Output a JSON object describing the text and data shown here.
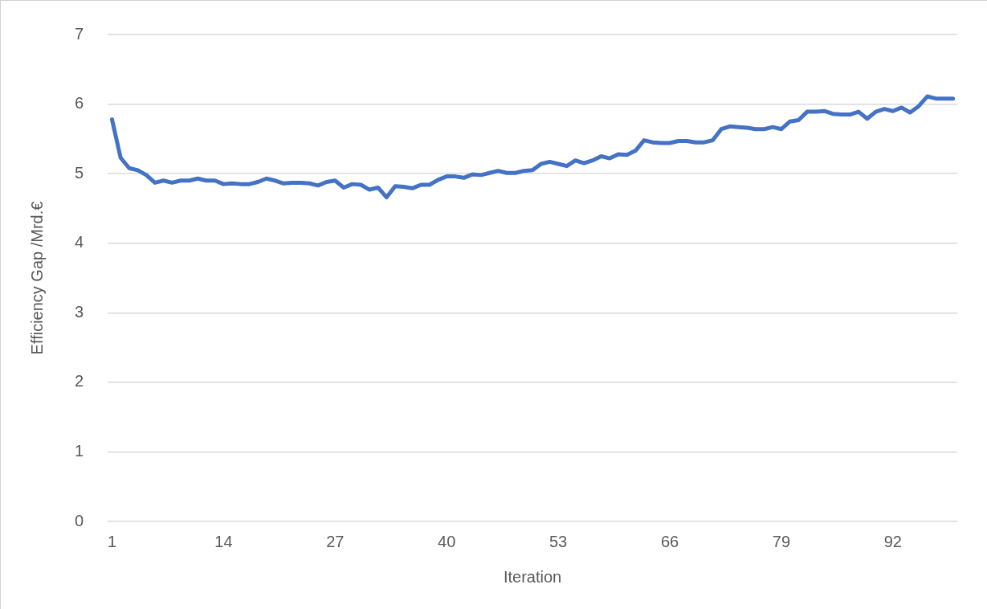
{
  "chart_data": {
    "type": "line",
    "xlabel": "Iteration",
    "ylabel": "Efficiency Gap /Mrd.€",
    "categories": [
      "1",
      null,
      null,
      null,
      null,
      null,
      null,
      null,
      null,
      null,
      null,
      null,
      null,
      "14",
      null,
      null,
      null,
      null,
      null,
      null,
      null,
      null,
      null,
      null,
      null,
      null,
      "27",
      null,
      null,
      null,
      null,
      null,
      null,
      null,
      null,
      null,
      null,
      null,
      null,
      "40",
      null,
      null,
      null,
      null,
      null,
      null,
      null,
      null,
      null,
      null,
      null,
      null,
      "53",
      null,
      null,
      null,
      null,
      null,
      null,
      null,
      null,
      null,
      null,
      null,
      null,
      "66",
      null,
      null,
      null,
      null,
      null,
      null,
      null,
      null,
      null,
      null,
      null,
      null,
      "79",
      null,
      null,
      null,
      null,
      null,
      null,
      null,
      null,
      null,
      null,
      null,
      null,
      "92",
      null,
      null,
      null,
      null,
      null,
      null,
      null
    ],
    "series": [
      {
        "color": "#4472c4",
        "values": [
          5.78,
          5.23,
          5.08,
          5.05,
          4.98,
          4.87,
          4.9,
          4.87,
          4.9,
          4.9,
          4.93,
          4.9,
          4.9,
          4.85,
          4.86,
          4.85,
          4.85,
          4.88,
          4.93,
          4.9,
          4.86,
          4.87,
          4.87,
          4.86,
          4.83,
          4.88,
          4.9,
          4.8,
          4.85,
          4.84,
          4.77,
          4.8,
          4.66,
          4.82,
          4.81,
          4.79,
          4.84,
          4.84,
          4.91,
          4.96,
          4.96,
          4.94,
          4.99,
          4.98,
          5.01,
          5.04,
          5.01,
          5.01,
          5.04,
          5.05,
          5.14,
          5.17,
          5.14,
          5.11,
          5.19,
          5.15,
          5.19,
          5.25,
          5.22,
          5.28,
          5.27,
          5.33,
          5.48,
          5.45,
          5.44,
          5.44,
          5.47,
          5.47,
          5.45,
          5.45,
          5.48,
          5.64,
          5.68,
          5.67,
          5.66,
          5.64,
          5.64,
          5.67,
          5.64,
          5.75,
          5.77,
          5.89,
          5.89,
          5.9,
          5.86,
          5.85,
          5.85,
          5.89,
          5.79,
          5.89,
          5.93,
          5.9,
          5.95,
          5.88,
          5.97,
          6.11,
          6.08,
          6.08,
          6.08
        ]
      }
    ],
    "ylim": [
      0,
      7
    ],
    "yticks": [
      0,
      1,
      2,
      3,
      4,
      5,
      6,
      7
    ],
    "grid": "y",
    "legend": false,
    "marker": "none",
    "line_style": "solid"
  }
}
